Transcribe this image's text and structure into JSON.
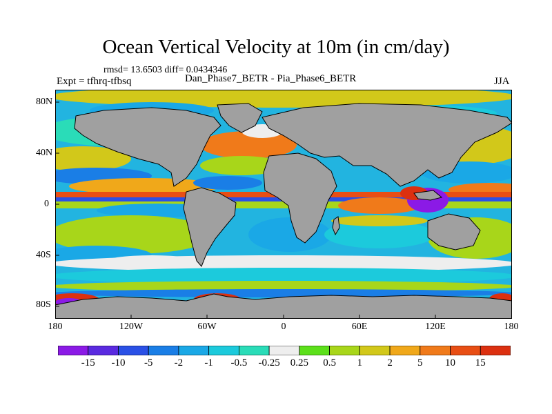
{
  "title": "Ocean Vertical Velocity at 10m (in cm/day)",
  "stats": "rmsd= 13.6503 diff= 0.0434346",
  "experiment_label": "Expt = tfhrq-tfbsq",
  "case_label": "Dan_Phase7_BETR - Pia_Phase6_BETR",
  "season": "JJA",
  "latitude_ticks": [
    "80N",
    "40N",
    "0",
    "40S",
    "80S"
  ],
  "longitude_ticks": [
    "180",
    "120W",
    "60W",
    "0",
    "60E",
    "120E",
    "180"
  ],
  "colorbar": {
    "labels": [
      "-15",
      "-10",
      "-5",
      "-2",
      "-1",
      "-0.5",
      "-0.25",
      "0.25",
      "0.5",
      "1",
      "2",
      "5",
      "10",
      "15"
    ],
    "colors": [
      "#8b1ae6",
      "#5a2ae0",
      "#2a50e6",
      "#1a7ee6",
      "#1aa8e6",
      "#1ccadc",
      "#2adcb8",
      "#eeeeee",
      "#5ce01a",
      "#a8d61a",
      "#d2c81a",
      "#f0a81a",
      "#f07a1a",
      "#e84e14",
      "#dc3010"
    ]
  },
  "land_color": "#a0a0a0"
}
